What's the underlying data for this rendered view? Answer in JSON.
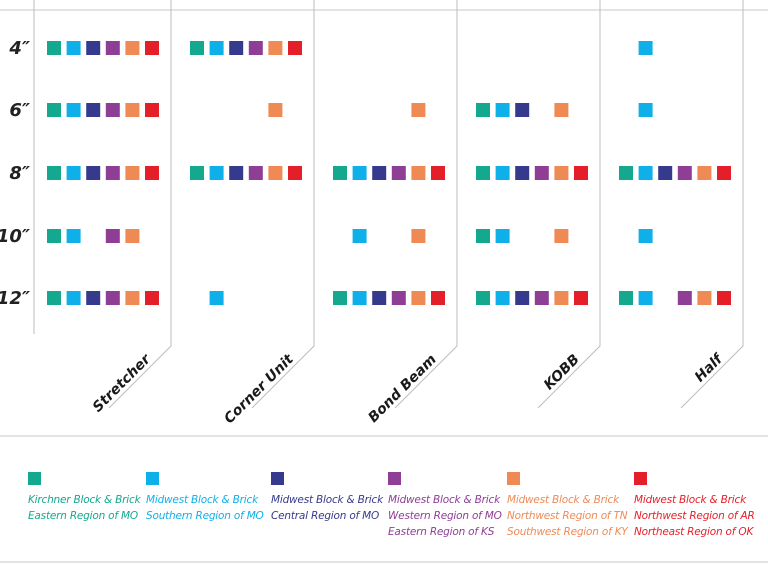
{
  "chart_data": {
    "type": "matrix",
    "sizes": [
      "4″",
      "6″",
      "8″",
      "10″",
      "12″"
    ],
    "unit_types": [
      "Stretcher",
      "Corner Unit",
      "Bond Beam",
      "KOBB",
      "Half"
    ],
    "suppliers": [
      {
        "id": "kirchner",
        "lines": [
          "Kirchner Block & Brick",
          "Eastern Region of MO"
        ],
        "color": "#14a88e"
      },
      {
        "id": "midwest-south",
        "lines": [
          "Midwest Block & Brick",
          "Southern Region of MO"
        ],
        "color": "#0fb0ea"
      },
      {
        "id": "midwest-central",
        "lines": [
          "Midwest Block & Brick",
          "Central Region of MO"
        ],
        "color": "#363a8c"
      },
      {
        "id": "midwest-west",
        "lines": [
          "Midwest Block & Brick",
          "Western Region of MO",
          "Eastern Region of KS"
        ],
        "color": "#8f3e96"
      },
      {
        "id": "midwest-nw",
        "lines": [
          "Midwest Block & Brick",
          "Northwest Region of TN",
          "Southwest Region of KY"
        ],
        "color": "#ef8a55"
      },
      {
        "id": "midwest-ar",
        "lines": [
          "Midwest Block & Brick",
          "Northwest Region of AR",
          "Northeast Region of OK"
        ],
        "color": "#e41f2a"
      }
    ],
    "availability": {
      "Stretcher": [
        [
          1,
          1,
          1,
          1,
          1,
          1
        ],
        [
          1,
          1,
          1,
          1,
          1,
          1
        ],
        [
          1,
          1,
          1,
          1,
          1,
          1
        ],
        [
          1,
          1,
          0,
          1,
          1,
          0
        ],
        [
          1,
          1,
          1,
          1,
          1,
          1
        ]
      ],
      "Corner Unit": [
        [
          1,
          1,
          1,
          1,
          1,
          1
        ],
        [
          0,
          0,
          0,
          0,
          1,
          0
        ],
        [
          1,
          1,
          1,
          1,
          1,
          1
        ],
        [
          0,
          0,
          0,
          0,
          0,
          0
        ],
        [
          0,
          1,
          0,
          0,
          0,
          0
        ]
      ],
      "Bond Beam": [
        [
          0,
          0,
          0,
          0,
          0,
          0
        ],
        [
          0,
          0,
          0,
          0,
          1,
          0
        ],
        [
          1,
          1,
          1,
          1,
          1,
          1
        ],
        [
          0,
          1,
          0,
          0,
          1,
          0
        ],
        [
          1,
          1,
          1,
          1,
          1,
          1
        ]
      ],
      "KOBB": [
        [
          0,
          0,
          0,
          0,
          0,
          0
        ],
        [
          1,
          1,
          1,
          0,
          1,
          0
        ],
        [
          1,
          1,
          1,
          1,
          1,
          1
        ],
        [
          1,
          1,
          0,
          0,
          1,
          0
        ],
        [
          1,
          1,
          1,
          1,
          1,
          1
        ]
      ],
      "Half": [
        [
          0,
          1,
          0,
          0,
          0,
          0
        ],
        [
          0,
          1,
          0,
          0,
          0,
          0
        ],
        [
          1,
          1,
          1,
          1,
          1,
          1
        ],
        [
          0,
          1,
          0,
          0,
          0,
          0
        ],
        [
          1,
          1,
          0,
          1,
          1,
          1
        ]
      ]
    },
    "grid": false,
    "legend": "bottom"
  }
}
